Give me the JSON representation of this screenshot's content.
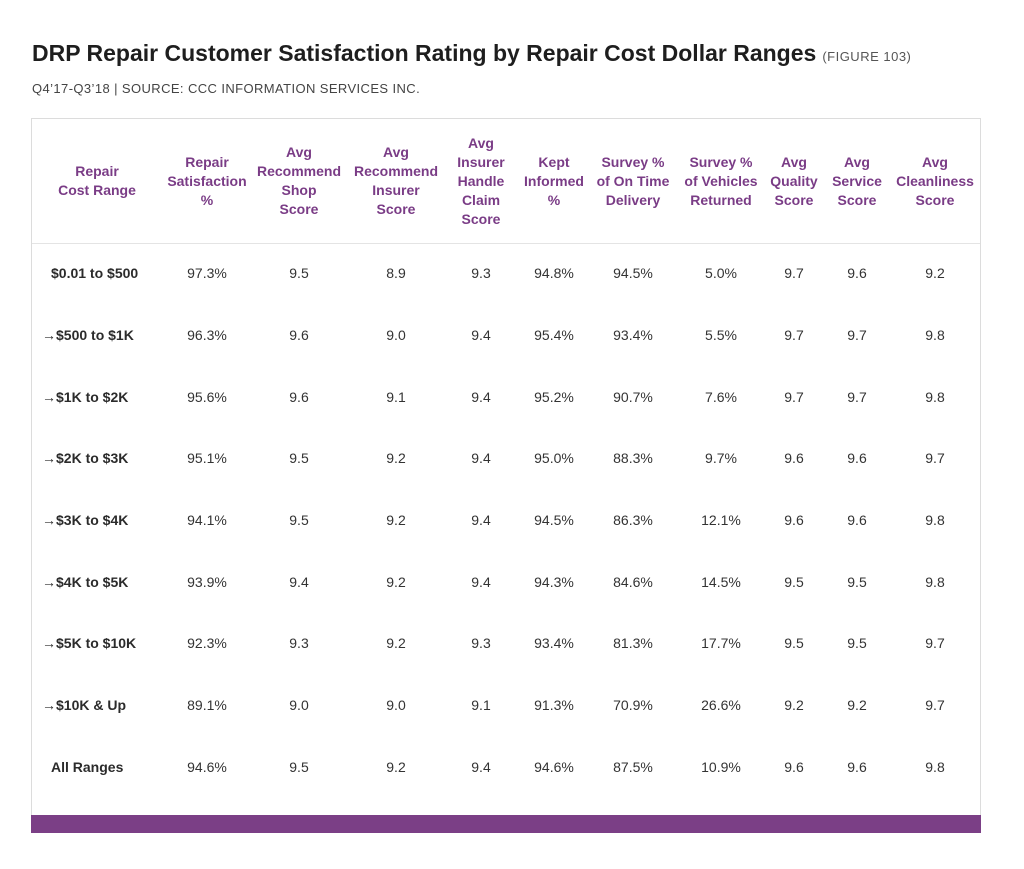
{
  "title": "DRP Repair Customer Satisfaction Rating by Repair Cost Dollar Ranges",
  "figure_label": "(FIGURE 103)",
  "subtitle": "Q4’17-Q3’18  |  SOURCE: CCC INFORMATION SERVICES INC.",
  "colors": {
    "header_text": "#7a3c86",
    "footer_bar": "#7b3f86",
    "body_text": "#333333"
  },
  "chart_data": {
    "type": "table",
    "title": "DRP Repair Customer Satisfaction Rating by Repair Cost Dollar Ranges",
    "columns": [
      [
        "Repair",
        "Cost Range"
      ],
      [
        "Repair",
        "Satisfaction",
        "%"
      ],
      [
        "Avg",
        "Recommend",
        "Shop",
        "Score"
      ],
      [
        "Avg",
        "Recommend",
        "Insurer",
        "Score"
      ],
      [
        "Avg",
        "Insurer",
        "Handle",
        "Claim",
        "Score"
      ],
      [
        "Kept",
        "Informed",
        "%"
      ],
      [
        "Survey %",
        "of On Time",
        "Delivery"
      ],
      [
        "Survey %",
        "of Vehicles",
        "Returned"
      ],
      [
        "Avg",
        "Quality",
        "Score"
      ],
      [
        "Avg",
        "Service",
        "Score"
      ],
      [
        "Avg",
        "Cleanliness",
        "Score"
      ]
    ],
    "rows": [
      {
        "label": "$0.01 to $500",
        "values": [
          "97.3%",
          "9.5",
          "8.9",
          "9.3",
          "94.8%",
          "94.5%",
          "5.0%",
          "9.7",
          "9.6",
          "9.2"
        ]
      },
      {
        "label": "→$500 to $1K",
        "values": [
          "96.3%",
          "9.6",
          "9.0",
          "9.4",
          "95.4%",
          "93.4%",
          "5.5%",
          "9.7",
          "9.7",
          "9.8"
        ]
      },
      {
        "label": "→$1K to $2K",
        "values": [
          "95.6%",
          "9.6",
          "9.1",
          "9.4",
          "95.2%",
          "90.7%",
          "7.6%",
          "9.7",
          "9.7",
          "9.8"
        ]
      },
      {
        "label": "→$2K to $3K",
        "values": [
          "95.1%",
          "9.5",
          "9.2",
          "9.4",
          "95.0%",
          "88.3%",
          "9.7%",
          "9.6",
          "9.6",
          "9.7"
        ]
      },
      {
        "label": "→$3K to $4K",
        "values": [
          "94.1%",
          "9.5",
          "9.2",
          "9.4",
          "94.5%",
          "86.3%",
          "12.1%",
          "9.6",
          "9.6",
          "9.8"
        ]
      },
      {
        "label": "→$4K to $5K",
        "values": [
          "93.9%",
          "9.4",
          "9.2",
          "9.4",
          "94.3%",
          "84.6%",
          "14.5%",
          "9.5",
          "9.5",
          "9.8"
        ]
      },
      {
        "label": "→$5K to $10K",
        "values": [
          "92.3%",
          "9.3",
          "9.2",
          "9.3",
          "93.4%",
          "81.3%",
          "17.7%",
          "9.5",
          "9.5",
          "9.7"
        ]
      },
      {
        "label": "→$10K & Up",
        "values": [
          "89.1%",
          "9.0",
          "9.0",
          "9.1",
          "91.3%",
          "70.9%",
          "26.6%",
          "9.2",
          "9.2",
          "9.7"
        ]
      },
      {
        "label": "All Ranges",
        "values": [
          "94.6%",
          "9.5",
          "9.2",
          "9.4",
          "94.6%",
          "87.5%",
          "10.9%",
          "9.6",
          "9.6",
          "9.8"
        ]
      }
    ]
  }
}
